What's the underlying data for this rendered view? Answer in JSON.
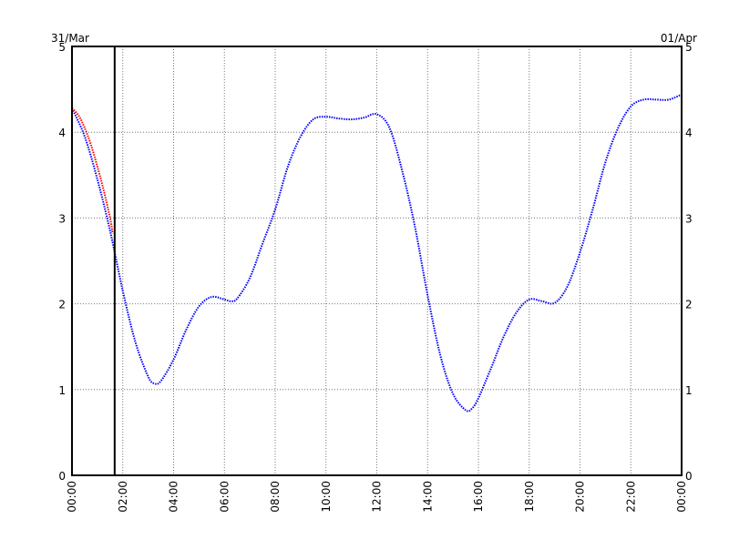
{
  "chart_data": {
    "type": "line",
    "date_left": "31/Mar",
    "date_right": "01/Apr",
    "xlim_hours": [
      0,
      24
    ],
    "ylim": [
      0,
      5
    ],
    "yticks": [
      0,
      1,
      2,
      3,
      4,
      5
    ],
    "xtick_labels": [
      "00:00",
      "02:00",
      "04:00",
      "06:00",
      "08:00",
      "10:00",
      "12:00",
      "14:00",
      "16:00",
      "18:00",
      "20:00",
      "22:00",
      "00:00"
    ],
    "grid": true,
    "current_time_marker_hours": 1.68,
    "series": [
      {
        "color": "#0000ff",
        "style": "dotted",
        "x": [
          0,
          0.5,
          1,
          1.5,
          2,
          2.5,
          3,
          3.25,
          3.5,
          4,
          4.5,
          5,
          5.5,
          6,
          6.25,
          6.5,
          7,
          7.5,
          8,
          8.5,
          9,
          9.5,
          10,
          10.5,
          11,
          11.5,
          12,
          12.5,
          13,
          13.5,
          14,
          14.5,
          15,
          15.5,
          15.75,
          16,
          16.5,
          17,
          17.5,
          18,
          18.5,
          19,
          19.5,
          20,
          20.5,
          21,
          21.5,
          22,
          22.5,
          23,
          23.5,
          24
        ],
        "y": [
          4.28,
          3.95,
          3.45,
          2.85,
          2.15,
          1.55,
          1.15,
          1.07,
          1.1,
          1.35,
          1.7,
          1.97,
          2.08,
          2.05,
          2.03,
          2.06,
          2.3,
          2.7,
          3.1,
          3.6,
          3.95,
          4.15,
          4.18,
          4.16,
          4.15,
          4.17,
          4.21,
          4.05,
          3.55,
          2.9,
          2.1,
          1.4,
          0.95,
          0.76,
          0.78,
          0.9,
          1.25,
          1.62,
          1.9,
          2.05,
          2.03,
          2.01,
          2.2,
          2.6,
          3.1,
          3.65,
          4.05,
          4.3,
          4.38,
          4.38,
          4.38,
          4.44
        ]
      },
      {
        "color": "#ff0000",
        "style": "dotted",
        "x": [
          0,
          0.25,
          0.5,
          0.75,
          1,
          1.25,
          1.5,
          1.6
        ],
        "y": [
          4.28,
          4.2,
          4.05,
          3.85,
          3.6,
          3.32,
          3.0,
          2.82
        ]
      }
    ]
  }
}
